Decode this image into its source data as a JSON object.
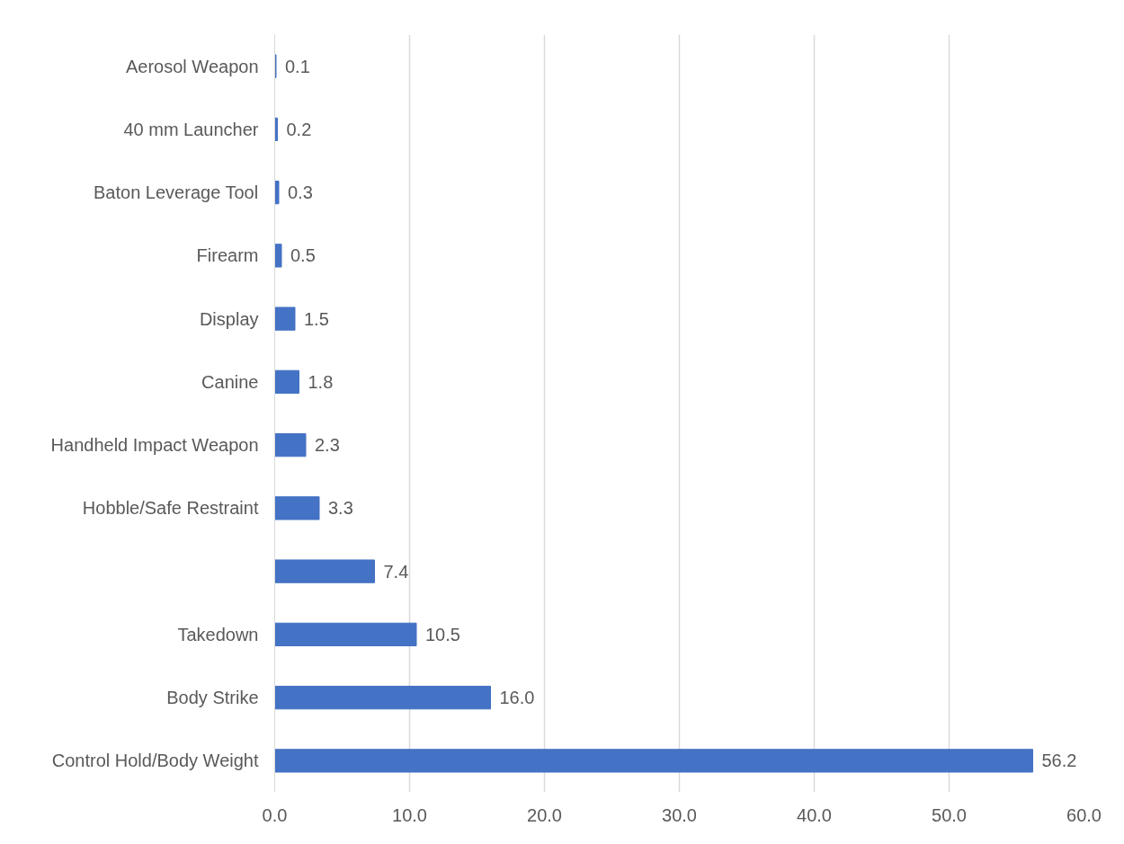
{
  "chart_data": {
    "type": "bar",
    "orientation": "horizontal",
    "categories": [
      "Aerosol Weapon",
      "40 mm Launcher",
      "Baton Leverage Tool",
      "Firearm",
      "Display",
      "Canine",
      "Handheld Impact Weapon",
      "Hobble/Safe Restraint",
      null,
      "Takedown",
      "Body Strike",
      "Control Hold/Body Weight"
    ],
    "values": [
      0.1,
      0.2,
      0.3,
      0.5,
      1.5,
      1.8,
      2.3,
      3.3,
      7.4,
      10.5,
      16.0,
      56.2
    ],
    "value_labels": [
      "0.1",
      "0.2",
      "0.3",
      "0.5",
      "1.5",
      "1.8",
      "2.3",
      "3.3",
      "7.4",
      "10.5",
      "16.0",
      "56.2"
    ],
    "color": "#4472c4",
    "xlim": [
      0,
      60
    ],
    "xticks": [
      {
        "value": 0,
        "label": "0.0"
      },
      {
        "value": 10,
        "label": "10.0"
      },
      {
        "value": 20,
        "label": "20.0"
      },
      {
        "value": 30,
        "label": "30.0"
      },
      {
        "value": 40,
        "label": "40.0"
      },
      {
        "value": 50,
        "label": "50.0"
      },
      {
        "value": 60,
        "label": "60.0"
      }
    ],
    "grid": "x"
  }
}
